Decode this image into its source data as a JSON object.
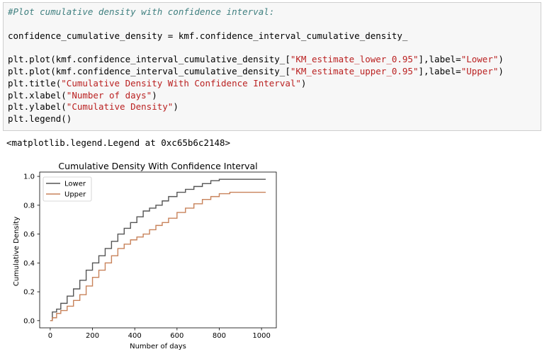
{
  "code_cell": {
    "lines": [
      {
        "segments": [
          {
            "t": "#Plot cumulative density with confidence interval:",
            "k": "comment"
          }
        ]
      },
      {
        "segments": []
      },
      {
        "segments": [
          {
            "t": "confidence_cumulative_density = kmf.confidence_interval_cumulative_density_",
            "k": "plain"
          }
        ]
      },
      {
        "segments": []
      },
      {
        "segments": [
          {
            "t": "plt.plot(kmf.confidence_interval_cumulative_density_[",
            "k": "plain"
          },
          {
            "t": "\"KM_estimate_lower_0.95\"",
            "k": "str"
          },
          {
            "t": "],label=",
            "k": "plain"
          },
          {
            "t": "\"Lower\"",
            "k": "str"
          },
          {
            "t": ")",
            "k": "plain"
          }
        ]
      },
      {
        "segments": [
          {
            "t": "plt.plot(kmf.confidence_interval_cumulative_density_[",
            "k": "plain"
          },
          {
            "t": "\"KM_estimate_upper_0.95\"",
            "k": "str"
          },
          {
            "t": "],label=",
            "k": "plain"
          },
          {
            "t": "\"Upper\"",
            "k": "str"
          },
          {
            "t": ")",
            "k": "plain"
          }
        ]
      },
      {
        "segments": [
          {
            "t": "plt.title(",
            "k": "plain"
          },
          {
            "t": "\"Cumulative Density With Confidence Interval\"",
            "k": "str"
          },
          {
            "t": ")",
            "k": "plain"
          }
        ]
      },
      {
        "segments": [
          {
            "t": "plt.xlabel(",
            "k": "plain"
          },
          {
            "t": "\"Number of days\"",
            "k": "str"
          },
          {
            "t": ")",
            "k": "plain"
          }
        ]
      },
      {
        "segments": [
          {
            "t": "plt.ylabel(",
            "k": "plain"
          },
          {
            "t": "\"Cumulative Density\"",
            "k": "str"
          },
          {
            "t": ")",
            "k": "plain"
          }
        ]
      },
      {
        "segments": [
          {
            "t": "plt.legend()",
            "k": "plain"
          }
        ]
      }
    ]
  },
  "output": {
    "repr_text": "<matplotlib.legend.Legend at 0xc65b6c2148>"
  },
  "colors": {
    "code_bg": "#f7f7f7",
    "comment": "#408080",
    "string": "#ba2121",
    "lower_line": "#555555",
    "upper_line": "#c8825a"
  },
  "chart_data": {
    "type": "line",
    "title": "Cumulative Density With Confidence Interval",
    "xlabel": "Number of days",
    "ylabel": "Cumulative Density",
    "xlim": [
      -50,
      1070
    ],
    "ylim": [
      -0.05,
      1.03
    ],
    "xticks": [
      0,
      200,
      400,
      600,
      800,
      1000
    ],
    "yticks": [
      0.0,
      0.2,
      0.4,
      0.6,
      0.8,
      1.0
    ],
    "xtick_labels": [
      "0",
      "200",
      "400",
      "600",
      "800",
      "1000"
    ],
    "ytick_labels": [
      "0.0",
      "0.2",
      "0.4",
      "0.6",
      "0.8",
      "1.0"
    ],
    "grid": false,
    "legend_position": "top-left",
    "series": [
      {
        "name": "Lower",
        "color": "#555555",
        "x": [
          0,
          10,
          30,
          50,
          80,
          110,
          140,
          170,
          200,
          230,
          260,
          290,
          320,
          350,
          380,
          410,
          440,
          470,
          500,
          530,
          560,
          600,
          640,
          680,
          720,
          760,
          800,
          850,
          900,
          950,
          1020
        ],
        "y": [
          0.0,
          0.06,
          0.08,
          0.12,
          0.17,
          0.22,
          0.28,
          0.35,
          0.4,
          0.45,
          0.5,
          0.55,
          0.6,
          0.64,
          0.68,
          0.72,
          0.76,
          0.78,
          0.8,
          0.83,
          0.86,
          0.89,
          0.91,
          0.93,
          0.95,
          0.97,
          0.98,
          0.98,
          0.98,
          0.98,
          0.98
        ]
      },
      {
        "name": "Upper",
        "color": "#c8825a",
        "x": [
          0,
          10,
          30,
          50,
          80,
          110,
          140,
          170,
          200,
          230,
          260,
          290,
          320,
          350,
          380,
          410,
          440,
          470,
          500,
          530,
          560,
          600,
          640,
          680,
          720,
          760,
          800,
          850,
          900,
          950,
          1020
        ],
        "y": [
          0.0,
          0.02,
          0.05,
          0.07,
          0.1,
          0.14,
          0.18,
          0.24,
          0.3,
          0.35,
          0.4,
          0.45,
          0.5,
          0.53,
          0.56,
          0.58,
          0.6,
          0.63,
          0.66,
          0.68,
          0.71,
          0.75,
          0.78,
          0.81,
          0.84,
          0.86,
          0.88,
          0.89,
          0.89,
          0.89,
          0.89
        ]
      }
    ]
  }
}
